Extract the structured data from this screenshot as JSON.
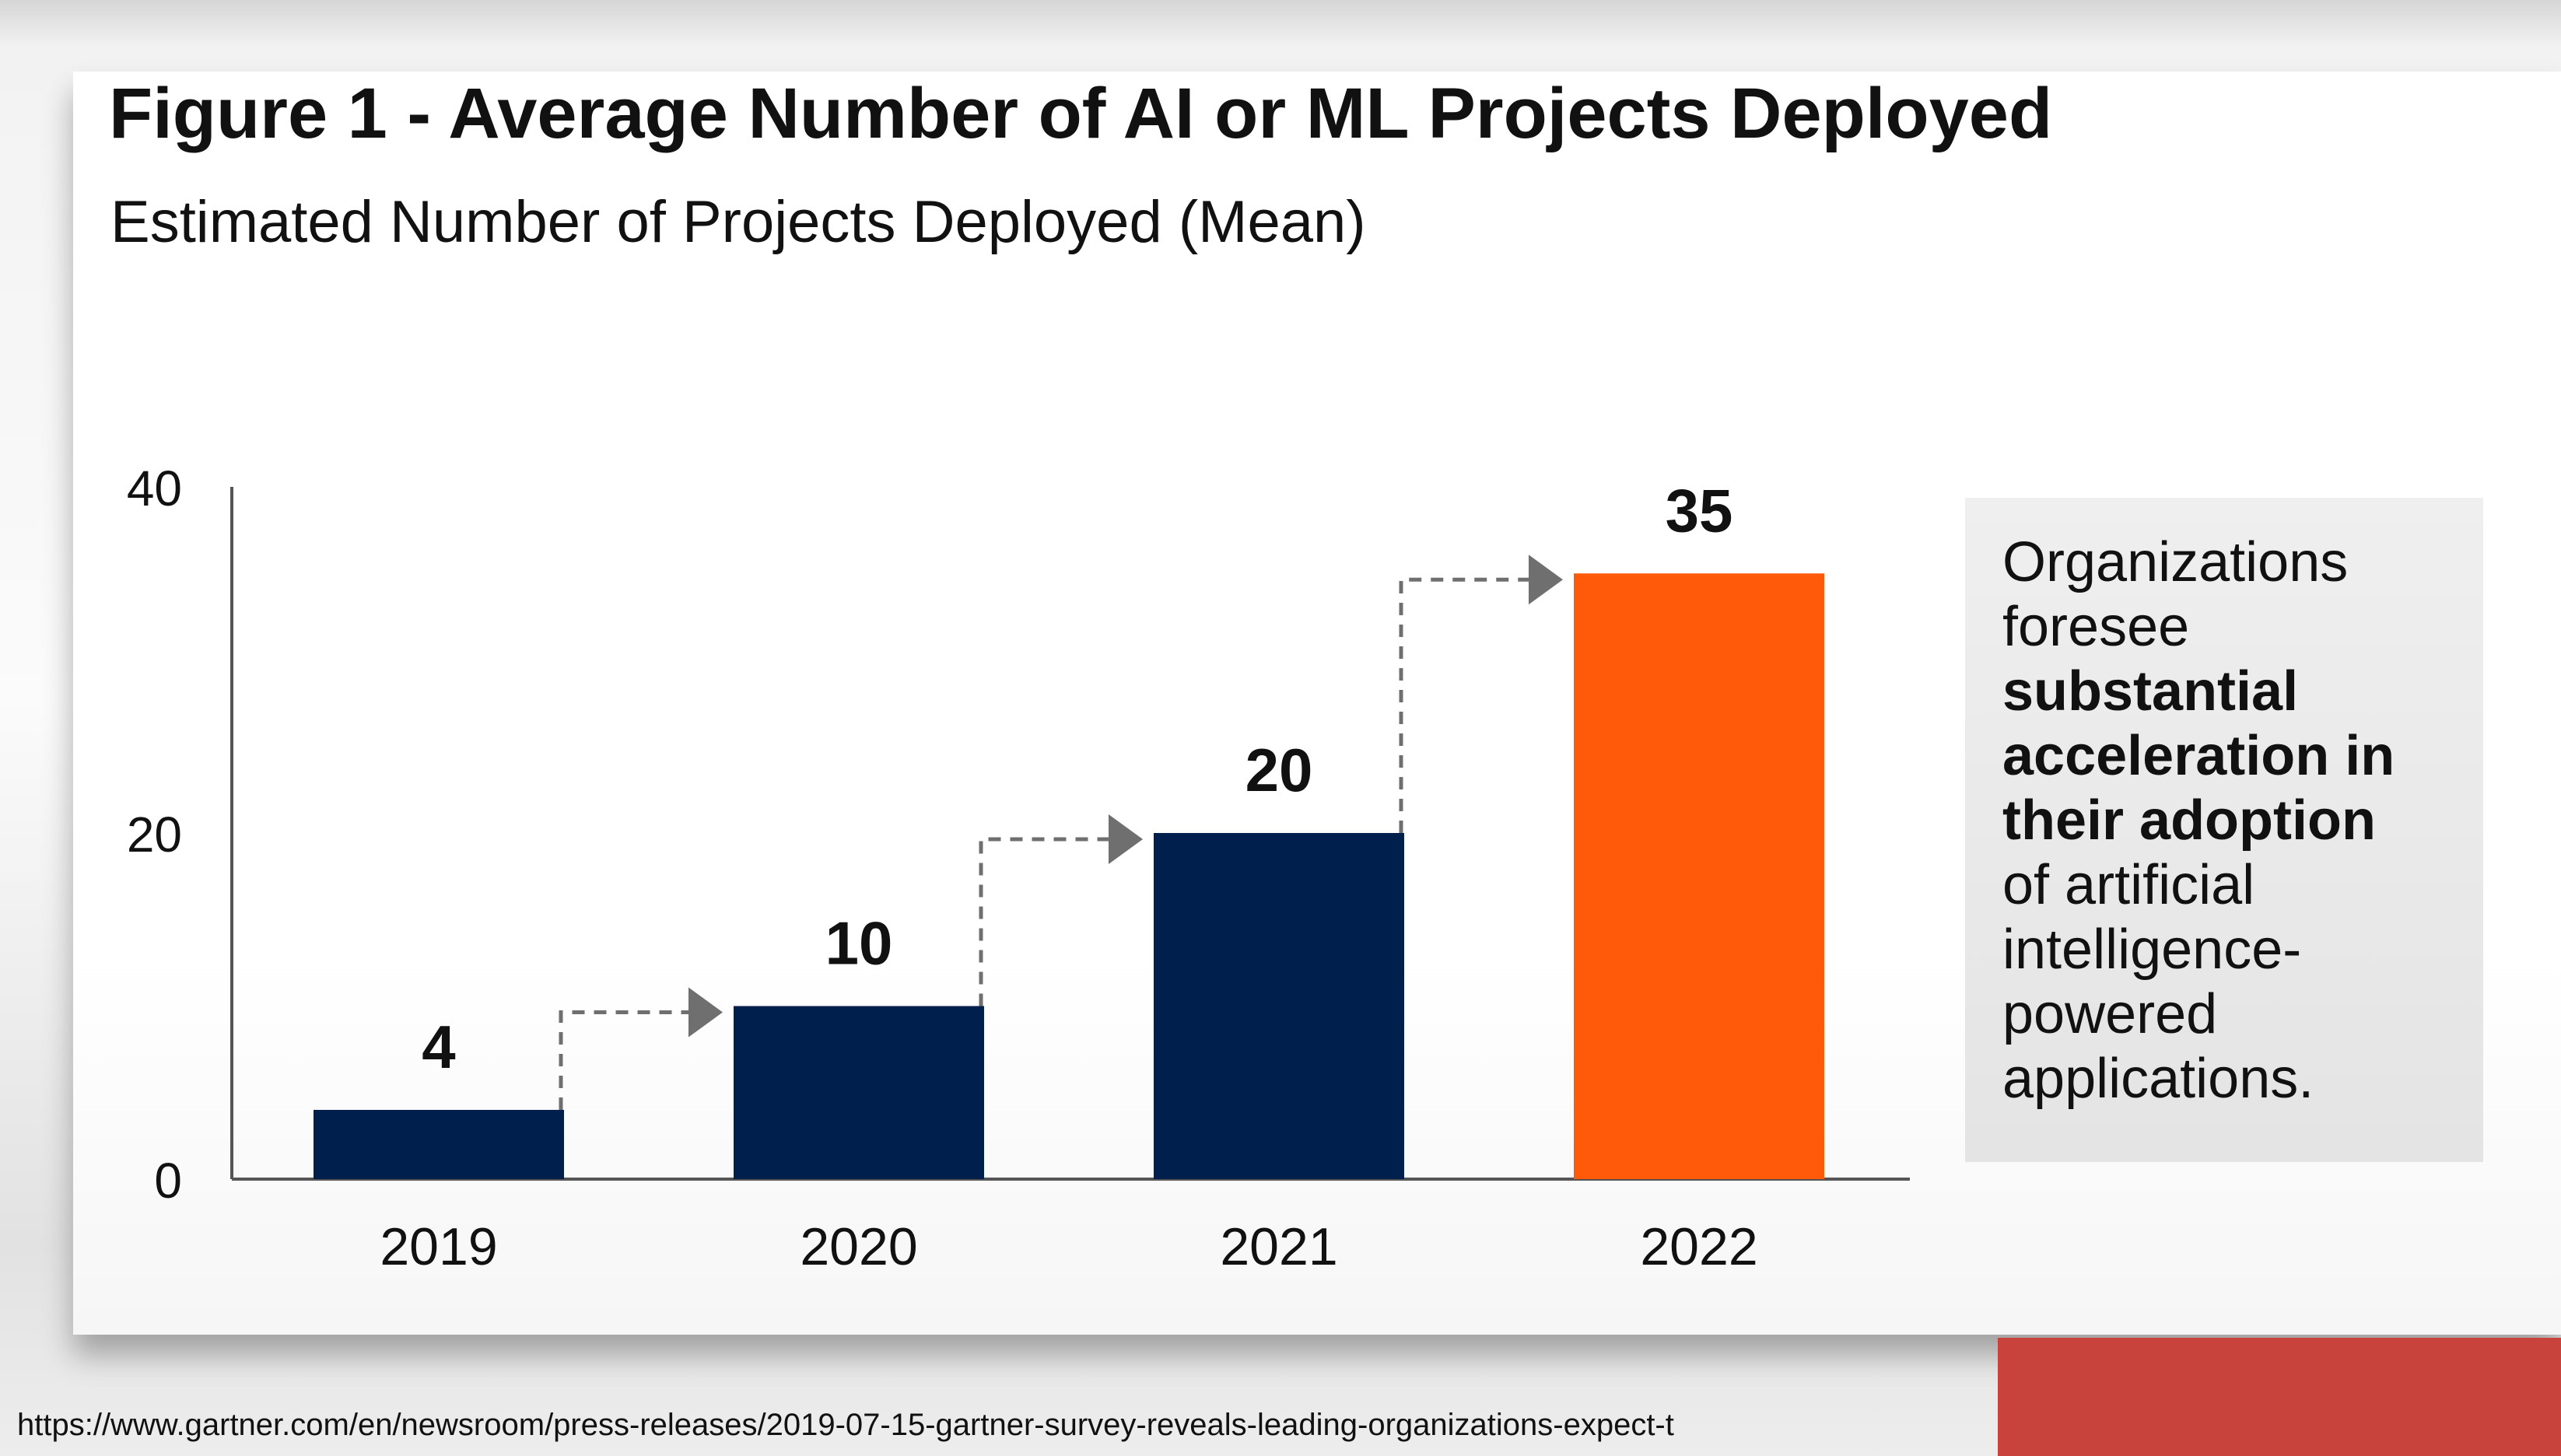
{
  "chart_data": {
    "type": "bar",
    "title": "Figure 1 - Average Number of AI or ML Projects Deployed",
    "subtitle": "Estimated Number of Projects Deployed (Mean)",
    "categories": [
      "2019",
      "2020",
      "2021",
      "2022"
    ],
    "values": [
      4,
      10,
      20,
      35
    ],
    "data_labels": [
      "4",
      "10",
      "20",
      "35"
    ],
    "yticks": [
      "0",
      "20",
      "40"
    ],
    "ylim": [
      0,
      40
    ],
    "grid": false,
    "colors": [
      "#001f4d",
      "#001f4d",
      "#001f4d",
      "#ff5a0a"
    ],
    "arrow_color": "#6f6f6f"
  },
  "callout": {
    "line1": "Organizations",
    "line2": "foresee",
    "bold1": "substantial",
    "bold2": "acceleration in",
    "bold3": "their adoption",
    "line3": "of artificial",
    "line4": "intelligence-",
    "line5": "powered",
    "line6": "applications."
  },
  "source_url": "https://www.gartner.com/en/newsroom/press-releases/2019-07-15-gartner-survey-reveals-leading-organizations-expect-t"
}
